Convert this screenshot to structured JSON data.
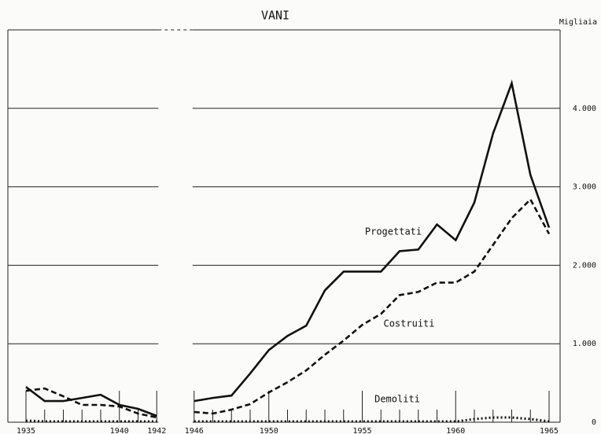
{
  "chart_data": {
    "type": "line",
    "title": "VANI",
    "y_axis_label": "Migliaia",
    "categories": [
      "1935",
      null,
      null,
      null,
      null,
      "1940",
      null,
      "1942",
      null,
      "1946",
      null,
      null,
      null,
      "1950",
      null,
      null,
      null,
      null,
      "1955",
      null,
      null,
      null,
      null,
      "1960",
      null,
      null,
      null,
      null,
      "1965"
    ],
    "series": [
      {
        "name": "Progettati",
        "color": "#111111",
        "style": "solid",
        "values": [
          450,
          270,
          270,
          310,
          350,
          220,
          170,
          80,
          null,
          270,
          310,
          340,
          620,
          920,
          1100,
          1230,
          1680,
          1920,
          1920,
          1920,
          2180,
          2200,
          2520,
          2320,
          2800,
          3680,
          4320,
          3150,
          2480
        ]
      },
      {
        "name": "Costruiti",
        "color": "#111111",
        "style": "dashed",
        "values": [
          400,
          430,
          330,
          220,
          220,
          200,
          110,
          60,
          null,
          130,
          110,
          160,
          230,
          380,
          510,
          660,
          860,
          1040,
          1240,
          1380,
          1620,
          1660,
          1780,
          1780,
          1920,
          2260,
          2600,
          2840,
          2400
        ]
      },
      {
        "name": "Demoliti",
        "color": "#111111",
        "style": "dotted",
        "values": [
          20,
          10,
          10,
          10,
          10,
          10,
          10,
          10,
          null,
          10,
          10,
          10,
          10,
          10,
          10,
          10,
          10,
          10,
          10,
          10,
          10,
          10,
          10,
          10,
          40,
          60,
          60,
          40,
          10
        ]
      }
    ],
    "ylim": [
      0,
      5000
    ],
    "yticks": [
      0,
      {
        "value": 1000,
        "label": "1.000"
      },
      {
        "value": 2000,
        "label": "2.000"
      },
      {
        "value": 3000,
        "label": "3.000"
      },
      {
        "value": 4000,
        "label": "4.000"
      }
    ],
    "grid": true
  }
}
